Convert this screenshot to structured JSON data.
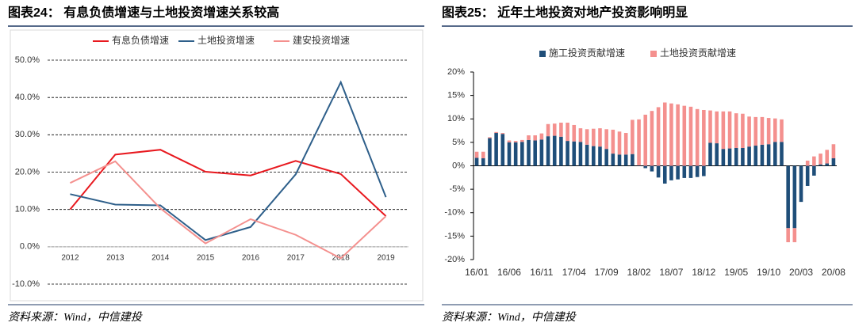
{
  "chart_data": [
    {
      "type": "line",
      "title": "图表24： 有息负债增速与土地投资增速关系较高",
      "source": "资料来源：Wind，中信建投",
      "categories": [
        "2012",
        "2013",
        "2014",
        "2015",
        "2016",
        "2017",
        "2018",
        "2019"
      ],
      "series": [
        {
          "name": "有息负债增速",
          "color": "#e8191f",
          "values": [
            10.0,
            24.7,
            26.0,
            20.1,
            19.1,
            23.0,
            19.5,
            8.2
          ]
        },
        {
          "name": "土地投资增速",
          "color": "#2e5f8a",
          "values": [
            14.1,
            11.3,
            11.1,
            1.8,
            5.3,
            19.4,
            44.1,
            13.3
          ]
        },
        {
          "name": "建安投资增速",
          "color": "#f4908e",
          "values": [
            17.1,
            22.9,
            10.3,
            0.9,
            7.4,
            3.2,
            -3.1,
            8.2
          ]
        }
      ],
      "ylim": [
        -10,
        50
      ],
      "yticks": [
        {
          "value": -10,
          "label": "-10.0%"
        },
        {
          "value": 0,
          "label": "0.0%"
        },
        {
          "value": 10,
          "label": "10.0%"
        },
        {
          "value": 20,
          "label": "20.0%"
        },
        {
          "value": 30,
          "label": "30.0%"
        },
        {
          "value": 40,
          "label": "40.0%"
        },
        {
          "value": 50,
          "label": "50.0%"
        }
      ],
      "grid": true
    },
    {
      "type": "bar",
      "stacked": true,
      "title": "图表25： 近年土地投资对地产投资影响明显",
      "source": "资料来源：Wind，中信建投",
      "categories": [
        "16/01",
        null,
        null,
        null,
        null,
        "16/06",
        null,
        null,
        null,
        null,
        "16/11",
        null,
        null,
        null,
        null,
        "17/04",
        null,
        null,
        null,
        null,
        "17/09",
        null,
        null,
        null,
        null,
        "18/02",
        null,
        null,
        null,
        null,
        "18/07",
        null,
        null,
        null,
        null,
        "18/12",
        null,
        null,
        null,
        null,
        "19/05",
        null,
        null,
        null,
        null,
        "19/10",
        null,
        null,
        null,
        null,
        "20/03",
        null,
        null,
        null,
        null,
        "20/08"
      ],
      "series": [
        {
          "name": "施工投资贡献增速",
          "color": "#1f4e79",
          "values": [
            1.7,
            1.6,
            5.9,
            7.0,
            6.8,
            5.0,
            5.0,
            5.1,
            5.5,
            5.4,
            5.6,
            6.3,
            6.4,
            6.2,
            5.3,
            5.2,
            5.1,
            4.5,
            4.2,
            4.1,
            3.6,
            2.6,
            2.4,
            2.4,
            2.5,
            0.1,
            -0.5,
            -1.2,
            -2.5,
            -3.8,
            -3.1,
            -2.9,
            -2.6,
            -2.6,
            -2.4,
            -2.2,
            4.9,
            4.8,
            3.6,
            3.7,
            3.8,
            3.8,
            4.1,
            4.3,
            4.5,
            4.6,
            5.1,
            5.1,
            -13.3,
            -13.3,
            -7.7,
            -4.3,
            -2.1,
            0.3,
            0.5,
            1.6
          ]
        },
        {
          "name": "土地投资贡献增速",
          "color": "#f4908e",
          "values": [
            1.3,
            1.4,
            0.2,
            0.2,
            0.2,
            0.4,
            0.3,
            0.4,
            1.0,
            1.1,
            1.3,
            2.6,
            2.6,
            3.0,
            3.9,
            3.5,
            2.9,
            3.3,
            3.7,
            3.9,
            4.2,
            5.1,
            4.9,
            4.6,
            7.3,
            9.8,
            10.9,
            11.7,
            12.5,
            13.5,
            13.3,
            13.1,
            12.8,
            12.6,
            12.1,
            11.9,
            6.9,
            6.8,
            8.0,
            7.9,
            7.4,
            7.3,
            6.4,
            6.1,
            5.9,
            5.6,
            5.0,
            4.8,
            -3.0,
            -3.0,
            0,
            1.1,
            2.0,
            2.3,
            2.9,
            3.0
          ]
        }
      ],
      "ylim": [
        -20,
        20
      ],
      "yticks": [
        {
          "value": -20,
          "label": "-20%"
        },
        {
          "value": -15,
          "label": "-15%"
        },
        {
          "value": -10,
          "label": "-10%"
        },
        {
          "value": -5,
          "label": "-5%"
        },
        {
          "value": 0,
          "label": "0%"
        },
        {
          "value": 5,
          "label": "5%"
        },
        {
          "value": 10,
          "label": "10%"
        },
        {
          "value": 15,
          "label": "15%"
        },
        {
          "value": 20,
          "label": "20%"
        }
      ],
      "grid": false
    }
  ]
}
